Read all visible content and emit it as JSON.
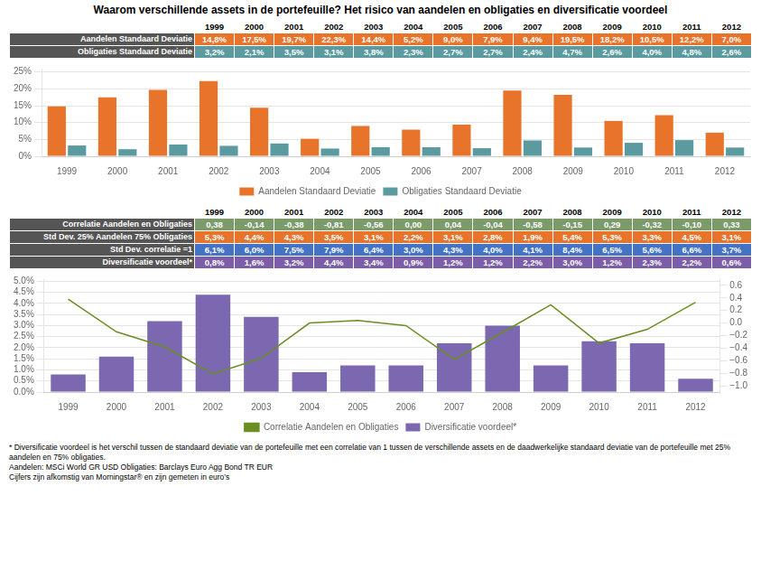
{
  "chart_data": [
    {
      "type": "table",
      "title": "Waarom verschillende assets in de portefeuille? Het risico van aandelen en obligaties en diversificatie voordeel",
      "categories": [
        "1999",
        "2000",
        "2001",
        "2002",
        "2003",
        "2004",
        "2005",
        "2006",
        "2007",
        "2008",
        "2009",
        "2010",
        "2011",
        "2012"
      ],
      "series": [
        {
          "name": "Aandelen Standaard Deviatie",
          "color": "#E8732A",
          "values": [
            14.8,
            17.5,
            19.7,
            22.3,
            14.4,
            5.2,
            9.0,
            7.9,
            9.4,
            19.5,
            18.2,
            10.5,
            12.2,
            7.0
          ],
          "value_labels": [
            "14,8%",
            "17,5%",
            "19,7%",
            "22,3%",
            "14,4%",
            "5,2%",
            "9,0%",
            "7,9%",
            "9,4%",
            "19,5%",
            "18,2%",
            "10,5%",
            "12,2%",
            "7,0%"
          ]
        },
        {
          "name": "Obligaties Standaard Deviatie",
          "color": "#5B9BA0",
          "values": [
            3.2,
            2.1,
            3.5,
            3.1,
            3.8,
            2.3,
            2.7,
            2.7,
            2.4,
            4.7,
            2.6,
            4.0,
            4.8,
            2.6
          ],
          "value_labels": [
            "3,2%",
            "2,1%",
            "3,5%",
            "3,1%",
            "3,8%",
            "2,3%",
            "2,7%",
            "2,7%",
            "2,4%",
            "4,7%",
            "2,6%",
            "4,0%",
            "4,8%",
            "2,6%"
          ]
        }
      ]
    },
    {
      "type": "bar",
      "categories": [
        "1999",
        "2000",
        "2001",
        "2002",
        "2003",
        "2004",
        "2005",
        "2006",
        "2007",
        "2008",
        "2009",
        "2010",
        "2011",
        "2012"
      ],
      "series": [
        {
          "name": "Aandelen Standaard Deviatie",
          "color": "#E8732A",
          "values": [
            14.8,
            17.5,
            19.7,
            22.3,
            14.4,
            5.2,
            9.0,
            7.9,
            9.4,
            19.5,
            18.2,
            10.5,
            12.2,
            7.0
          ]
        },
        {
          "name": "Obligaties Standaard Deviatie",
          "color": "#5B9BA0",
          "values": [
            3.2,
            2.1,
            3.5,
            3.1,
            3.8,
            2.3,
            2.7,
            2.7,
            2.4,
            4.7,
            2.6,
            4.0,
            4.8,
            2.6
          ]
        }
      ],
      "ylim": [
        0,
        26
      ],
      "yticks": [
        {
          "value": 0,
          "label": "0%"
        },
        {
          "value": 5,
          "label": "5%"
        },
        {
          "value": 10,
          "label": "10%"
        },
        {
          "value": 15,
          "label": "15%"
        },
        {
          "value": 20,
          "label": "20%"
        },
        {
          "value": 25,
          "label": "25%"
        }
      ],
      "grid": true,
      "legend": "bottom"
    },
    {
      "type": "table",
      "categories": [
        "1999",
        "2000",
        "2001",
        "2002",
        "2003",
        "2004",
        "2005",
        "2006",
        "2007",
        "2008",
        "2009",
        "2010",
        "2011",
        "2012"
      ],
      "series": [
        {
          "name": "Correlatie Aandelen en Obligaties",
          "color": "#7B9B6B",
          "values": [
            0.38,
            -0.14,
            -0.38,
            -0.81,
            -0.56,
            0.0,
            0.04,
            -0.04,
            -0.58,
            -0.15,
            0.29,
            -0.32,
            -0.1,
            0.33
          ],
          "value_labels": [
            "0,38",
            "-0,14",
            "-0,38",
            "-0,81",
            "-0,56",
            "0,00",
            "0,04",
            "-0,04",
            "-0,58",
            "-0,15",
            "0,29",
            "-0,32",
            "-0,10",
            "0,33"
          ]
        },
        {
          "name": "Std Dev. 25% Aandelen 75% Obligaties",
          "color": "#E8732A",
          "values": [
            5.3,
            4.4,
            4.3,
            3.5,
            3.1,
            2.2,
            3.1,
            2.8,
            1.9,
            5.4,
            5.3,
            3.3,
            4.5,
            3.1
          ],
          "value_labels": [
            "5,3%",
            "4,4%",
            "4,3%",
            "3,5%",
            "3,1%",
            "2,2%",
            "3,1%",
            "2,8%",
            "1,9%",
            "5,4%",
            "5,3%",
            "3,3%",
            "4,5%",
            "3,1%"
          ]
        },
        {
          "name": "Std Dev. correlatie =1",
          "color": "#4472C4",
          "values": [
            6.1,
            6.0,
            7.5,
            7.9,
            6.4,
            3.0,
            4.3,
            4.0,
            4.1,
            8.4,
            6.5,
            5.6,
            6.6,
            3.7
          ],
          "value_labels": [
            "6,1%",
            "6,0%",
            "7,5%",
            "7,9%",
            "6,4%",
            "3,0%",
            "4,3%",
            "4,0%",
            "4,1%",
            "8,4%",
            "6,5%",
            "5,6%",
            "6,6%",
            "3,7%"
          ]
        },
        {
          "name": "Diversificatie voordeel*",
          "color": "#7B5EA7",
          "values": [
            0.8,
            1.6,
            3.2,
            4.4,
            3.4,
            0.9,
            1.2,
            1.2,
            2.2,
            3.0,
            1.2,
            2.3,
            2.2,
            0.6
          ],
          "value_labels": [
            "0,8%",
            "1,6%",
            "3,2%",
            "4,4%",
            "3,4%",
            "0,9%",
            "1,2%",
            "1,2%",
            "2,2%",
            "3,0%",
            "1,2%",
            "2,3%",
            "2,2%",
            "0,6%"
          ]
        }
      ]
    },
    {
      "type": "bar",
      "categories": [
        "1999",
        "2000",
        "2001",
        "2002",
        "2003",
        "2004",
        "2005",
        "2006",
        "2007",
        "2008",
        "2009",
        "2010",
        "2011",
        "2012"
      ],
      "series": [
        {
          "name": "Diversificatie voordeel*",
          "color": "#7B68B0",
          "values": [
            0.8,
            1.6,
            3.2,
            4.4,
            3.4,
            0.9,
            1.2,
            1.2,
            2.2,
            3.0,
            1.2,
            2.3,
            2.2,
            0.6
          ]
        },
        {
          "name": "Correlatie Aandelen en Obligaties",
          "type": "line",
          "axis": "y2",
          "color": "#6B8E23",
          "values": [
            0.38,
            -0.14,
            -0.38,
            -0.81,
            -0.56,
            0.0,
            0.04,
            -0.04,
            -0.58,
            -0.15,
            0.29,
            -0.32,
            -0.1,
            0.33
          ]
        }
      ],
      "ylim": [
        0,
        5.1
      ],
      "yticks": [
        {
          "value": 0,
          "label": "0.0%"
        },
        {
          "value": 0.5,
          "label": "0.5%"
        },
        {
          "value": 1,
          "label": "1.0%"
        },
        {
          "value": 1.5,
          "label": "1.5%"
        },
        {
          "value": 2,
          "label": "2.0%"
        },
        {
          "value": 2.5,
          "label": "2.5%"
        },
        {
          "value": 3,
          "label": "3.0%"
        },
        {
          "value": 3.5,
          "label": "3.5%"
        },
        {
          "value": 4,
          "label": "4.0%"
        },
        {
          "value": 4.5,
          "label": "4.5%"
        },
        {
          "value": 5,
          "label": "5.0%"
        }
      ],
      "y2lim": [
        -1.1,
        0.7
      ],
      "y2ticks": [
        {
          "value": -1,
          "label": "−1.0"
        },
        {
          "value": -0.8,
          "label": "−0.8"
        },
        {
          "value": -0.6,
          "label": "−0.6"
        },
        {
          "value": -0.4,
          "label": "−0.4"
        },
        {
          "value": -0.2,
          "label": "−0.2"
        },
        {
          "value": 0,
          "label": "0.0"
        },
        {
          "value": 0.2,
          "label": "0.2"
        },
        {
          "value": 0.4,
          "label": "0.4"
        },
        {
          "value": 0.6,
          "label": "0.6"
        }
      ],
      "grid": true,
      "legend": "bottom",
      "annotations": [
        "* Diversificatie voordeel is het verschil tussen  de standaard deviatie van de portefeuille met een correlatie van 1 tussen de verschillende assets en  de daadwerkelijke standaard deviatie van de portefeuille met 25%",
        "aandelen en 75% obligaties.",
        "Aandelen: MSCi World GR USD        Obligaties: Barclays Euro Agg Bond TR EUR",
        "Cijfers zijn afkomstig van Morningstar® en zijn gemeten in euro’s"
      ]
    }
  ]
}
